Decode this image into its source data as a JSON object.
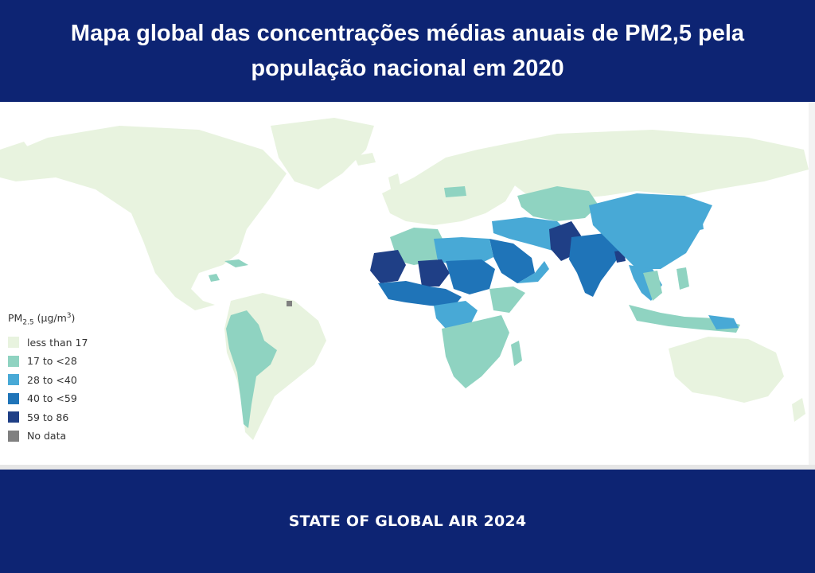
{
  "header": {
    "title": "Mapa global das concentrações médias anuais de PM2,5 pela população nacional em 2020"
  },
  "legend": {
    "title_main": "PM",
    "title_sub": "2.5",
    "title_unit_pre": " (μg/m",
    "title_unit_sup": "3",
    "title_unit_post": ")",
    "items": [
      {
        "label": "less than 17",
        "color": "#e8f3df"
      },
      {
        "label": "17 to <28",
        "color": "#8fd3c1"
      },
      {
        "label": "28 to <40",
        "color": "#48a9d6"
      },
      {
        "label": "40 to <59",
        "color": "#1f74b8"
      },
      {
        "label": "59 to 86",
        "color": "#1f3f86"
      },
      {
        "label": "No data",
        "color": "#808080"
      }
    ]
  },
  "footer": {
    "text": "STATE OF GLOBAL AIR 2024"
  }
}
